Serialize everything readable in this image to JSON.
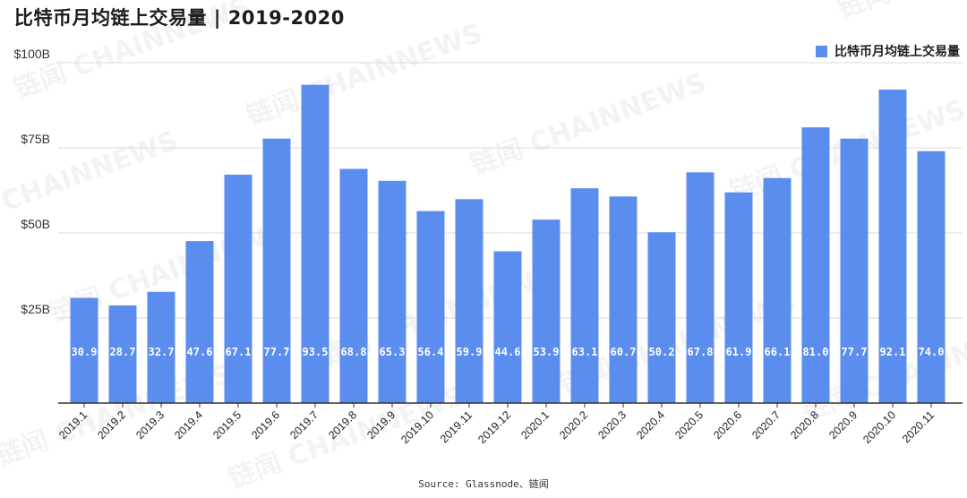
{
  "page_title": "比特币月均链上交易量 | 2019-2020",
  "source_text": "Source: Glassnode、链闻",
  "watermark_text": "链闻 CHAINNEWS",
  "colors": {
    "bar": "#5b8def",
    "grid": "#d9d9d9",
    "axis": "#333333",
    "label": "#ffffff"
  },
  "chart_data": {
    "type": "bar",
    "title": "比特币月均链上交易量 | 2019-2020",
    "xlabel": "",
    "ylabel": "",
    "ylim": [
      0,
      100
    ],
    "y_ticks": [
      {
        "value": 25,
        "label": "$25B"
      },
      {
        "value": 50,
        "label": "$50B"
      },
      {
        "value": 75,
        "label": "$75B"
      },
      {
        "value": 100,
        "label": "$100B"
      }
    ],
    "grid": true,
    "legend_position": "top-right",
    "categories": [
      "2019.1",
      "2019.2",
      "2019.3",
      "2019.4",
      "2019.5",
      "2019.6",
      "2019.7",
      "2019.8",
      "2019.9",
      "2019.10",
      "2019.11",
      "2019.12",
      "2020.1",
      "2020.2",
      "2020.3",
      "2020.4",
      "2020.5",
      "2020.6",
      "2020.7",
      "2020.8",
      "2020.9",
      "2020.10",
      "2020.11"
    ],
    "series": [
      {
        "name": "比特币月均链上交易量",
        "values": [
          30.9,
          28.7,
          32.7,
          47.6,
          67.1,
          77.7,
          93.5,
          68.8,
          65.3,
          56.4,
          59.9,
          44.6,
          53.9,
          63.1,
          60.7,
          50.2,
          67.8,
          61.9,
          66.1,
          81.0,
          77.7,
          92.1,
          74.0
        ],
        "value_labels": [
          "30.9",
          "28.7",
          "32.7",
          "47.6",
          "67.1",
          "77.7",
          "93.5",
          "68.8",
          "65.3",
          "56.4",
          "59.9",
          "44.6",
          "53.9",
          "63.1",
          "60.7",
          "50.2",
          "67.8",
          "61.9",
          "66.1",
          "81.0",
          "77.7",
          "92.1",
          "74.0"
        ]
      }
    ]
  }
}
